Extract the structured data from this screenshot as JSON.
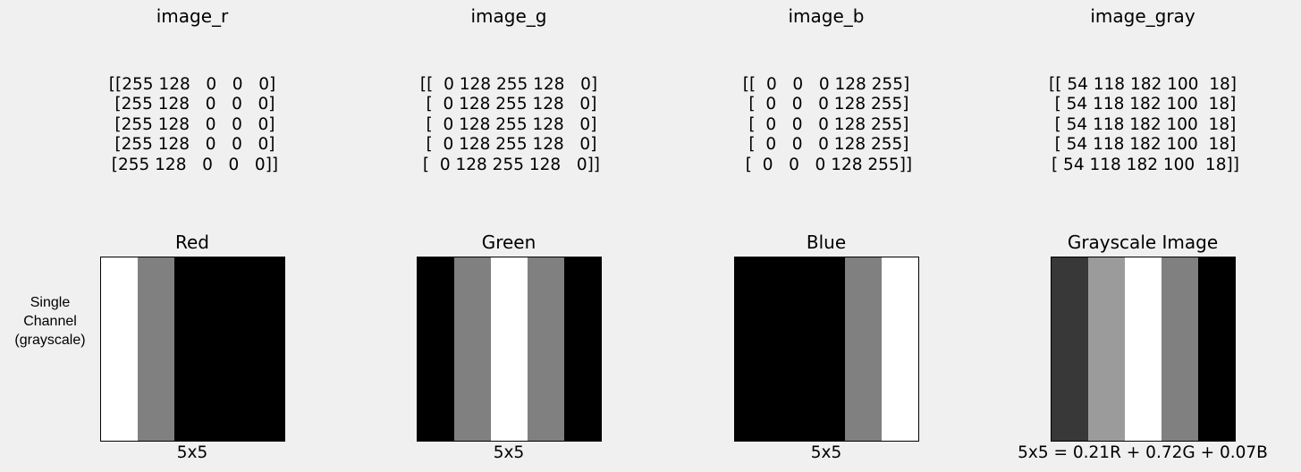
{
  "chart_data": [
    {
      "type": "heatmap",
      "title": "image_r",
      "matrix_rows": [
        "[[255 128   0   0   0]",
        " [255 128   0   0   0]",
        " [255 128   0   0   0]",
        " [255 128   0   0   0]",
        " [255 128   0   0   0]]"
      ],
      "image_title": "Red",
      "xlabel": "5x5",
      "values": [
        [
          255,
          128,
          0,
          0,
          0
        ],
        [
          255,
          128,
          0,
          0,
          0
        ],
        [
          255,
          128,
          0,
          0,
          0
        ],
        [
          255,
          128,
          0,
          0,
          0
        ],
        [
          255,
          128,
          0,
          0,
          0
        ]
      ]
    },
    {
      "type": "heatmap",
      "title": "image_g",
      "matrix_rows": [
        "[[  0 128 255 128   0]",
        " [  0 128 255 128   0]",
        " [  0 128 255 128   0]",
        " [  0 128 255 128   0]",
        " [  0 128 255 128   0]]"
      ],
      "image_title": "Green",
      "xlabel": "5x5",
      "values": [
        [
          0,
          128,
          255,
          128,
          0
        ],
        [
          0,
          128,
          255,
          128,
          0
        ],
        [
          0,
          128,
          255,
          128,
          0
        ],
        [
          0,
          128,
          255,
          128,
          0
        ],
        [
          0,
          128,
          255,
          128,
          0
        ]
      ]
    },
    {
      "type": "heatmap",
      "title": "image_b",
      "matrix_rows": [
        "[[  0   0   0 128 255]",
        " [  0   0   0 128 255]",
        " [  0   0   0 128 255]",
        " [  0   0   0 128 255]",
        " [  0   0   0 128 255]]"
      ],
      "image_title": "Blue",
      "xlabel": "5x5",
      "values": [
        [
          0,
          0,
          0,
          128,
          255
        ],
        [
          0,
          0,
          0,
          128,
          255
        ],
        [
          0,
          0,
          0,
          128,
          255
        ],
        [
          0,
          0,
          0,
          128,
          255
        ],
        [
          0,
          0,
          0,
          128,
          255
        ]
      ]
    },
    {
      "type": "heatmap",
      "title": "image_gray",
      "matrix_rows": [
        "[[ 54 118 182 100  18]",
        " [ 54 118 182 100  18]",
        " [ 54 118 182 100  18]",
        " [ 54 118 182 100  18]",
        " [ 54 118 182 100  18]]"
      ],
      "image_title": "Grayscale Image",
      "xlabel": "5x5 = 0.21R + 0.72G + 0.07B",
      "values": [
        [
          54,
          118,
          182,
          100,
          18
        ],
        [
          54,
          118,
          182,
          100,
          18
        ],
        [
          54,
          118,
          182,
          100,
          18
        ],
        [
          54,
          118,
          182,
          100,
          18
        ],
        [
          54,
          118,
          182,
          100,
          18
        ]
      ],
      "colormap": "gray, auto-scaled to data min/max"
    }
  ],
  "ylabel": "Single\nChannel\n(grayscale)"
}
